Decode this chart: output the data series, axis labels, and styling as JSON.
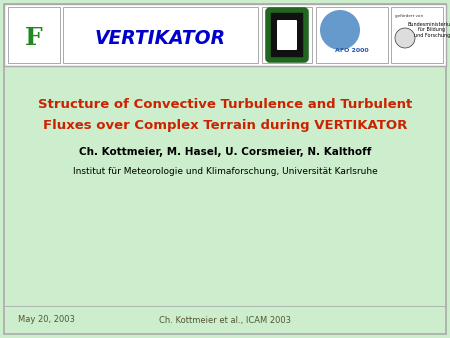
{
  "bg_color": "#cceecc",
  "border_color": "#aaaaaa",
  "title_line1": "Structure of Convective Turbulence and Turbulent",
  "title_line2": "Fluxes over Complex Terrain during VERTIKATOR",
  "title_color": "#cc2200",
  "authors": "Ch. Kottmeier, M. Hasel, U. Corsmeier, N. Kalthoff",
  "authors_color": "#000000",
  "institute": "Institut für Meteorologie und Klimaforschung, Universität Karlsruhe",
  "institute_color": "#000000",
  "footer_left": "May 20, 2003",
  "footer_right": "Ch. Kottmeier et al., ICAM 2003",
  "footer_color": "#555533",
  "vertikator_text": "VERTIKATOR",
  "vertikator_color": "#0000cc",
  "header_box_color": "#ffffff",
  "logo_f_color": "#228822",
  "afo_color": "#2255aa",
  "right_text": "Bundesministerium\nfür Bildung\nund Forschung",
  "title_fontsize": 9.5,
  "authors_fontsize": 7.5,
  "institute_fontsize": 6.5,
  "footer_fontsize": 6.0,
  "vertikator_fontsize": 13.5,
  "f_logo_fontsize": 18
}
